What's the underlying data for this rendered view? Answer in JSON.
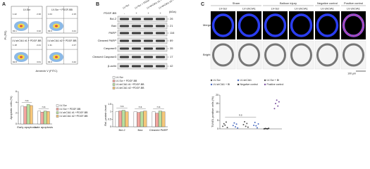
{
  "panel_a": {
    "letter": "A",
    "flow": {
      "y_label": "PI (PE)",
      "x_label": "Annexin V (FITC)",
      "plots": [
        {
          "label": "LV-Scr",
          "quadrants": [
            "1.22",
            "2.36",
            "93.1",
            "3.32"
          ]
        },
        {
          "label": "LV-Scr + PDGF-BB",
          "quadrants": [
            "1.04",
            "2.15",
            "93.6",
            "3.21"
          ]
        },
        {
          "label": "LV-shCIA1 #1 + PDGF-BB",
          "quadrants": [
            "1.18",
            "2.41",
            "92.8",
            "3.61"
          ]
        },
        {
          "label": "LV-shCIA1 #2 + PDGF-BB",
          "quadrants": [
            "1.31",
            "2.27",
            "93.0",
            "3.42"
          ]
        }
      ]
    },
    "chart": {
      "type": "bar",
      "y_label": "Apoptotic cells (%)",
      "categories": [
        "Early apoptosis",
        "Late apoptosis"
      ],
      "series": [
        {
          "name": "LV-Scr",
          "color": "#ffffff",
          "values": [
            3.3,
            2.4
          ]
        },
        {
          "name": "LV-Scr + PDGF-BB",
          "color": "#f4a7a0",
          "values": [
            3.2,
            2.2
          ]
        },
        {
          "name": "LV-shCIA1 #1 +PDGF-BB",
          "color": "#b9dfa0",
          "values": [
            3.6,
            2.4
          ]
        },
        {
          "name": "LV-shCIA1 #2 +PDGF-BB",
          "color": "#f6c77a",
          "values": [
            3.4,
            2.3
          ]
        }
      ],
      "ylim": [
        0,
        6
      ],
      "yticks": [
        0,
        2,
        4,
        6
      ],
      "annotations": [
        "n.s",
        "n.s"
      ]
    }
  },
  "panel_b": {
    "letter": "B",
    "lanes": [
      "LV-Scr",
      "LV-Scr + PDGF-BB",
      "LV-shCIA1 #1 + PDGF-BB",
      "LV-shCIA1 #2 + PDGF-BB"
    ],
    "treatment": {
      "label": "PDGF-BB",
      "signs": [
        "-",
        "+",
        "+",
        "+"
      ],
      "unit": "(kDa)"
    },
    "blots": [
      {
        "label": "Bcl-2",
        "kda": "26"
      },
      {
        "label": "Bax",
        "kda": "21"
      },
      {
        "label": "PARP",
        "kda": "116"
      },
      {
        "label": "Cleaved PARP",
        "kda": "89"
      },
      {
        "label": "Caspase3",
        "kda": "35"
      },
      {
        "label": "Cleaved Caspase3",
        "kda": "17"
      },
      {
        "label": "β-actin",
        "kda": "42"
      }
    ],
    "chart": {
      "type": "bar",
      "y_label": "Rel. protein level",
      "categories": [
        "Bcl-2",
        "Bax",
        "Cleaved PARP"
      ],
      "series": [
        {
          "name": "LV-Scr",
          "color": "#ffffff",
          "values": [
            1,
            1,
            1
          ]
        },
        {
          "name": "LV-Scr + PDGF-BB",
          "color": "#f4a7a0",
          "values": [
            1.05,
            0.95,
            0.9
          ]
        },
        {
          "name": "LV-shCIA1 #1 +PDGF-BB",
          "color": "#b9dfa0",
          "values": [
            1.1,
            1.0,
            1.05
          ]
        },
        {
          "name": "LV-shCIA1 #2 +PDGF-BB",
          "color": "#f6c77a",
          "values": [
            1.0,
            1.05,
            1.0
          ]
        }
      ],
      "ylim": [
        0,
        1.5
      ],
      "yticks": [
        0,
        0.5,
        1,
        1.5
      ],
      "annotations": [
        "n.s",
        "n.s",
        "n.s"
      ]
    }
  },
  "panel_c": {
    "letter": "C",
    "groups": [
      {
        "label": "Sham",
        "columns": [
          "LV-Scr",
          "LV-shCIA1"
        ]
      },
      {
        "label": "Balloon injury",
        "columns": [
          "LV-Scr",
          "LV-shCIA1"
        ]
      },
      {
        "label": "Negative control",
        "columns": [
          "LV-shCIA1"
        ]
      },
      {
        "label": "Positive control",
        "columns": [
          "LV-shCIA1"
        ]
      }
    ],
    "rows": [
      "Merge",
      "Bright"
    ],
    "scale_bar": "100 μm",
    "chart": {
      "type": "scatter",
      "y_label": "TUNEL positive cells (%)",
      "series": [
        {
          "name": "LV-Scr",
          "color": "#555555",
          "values": [
            1.5,
            3,
            2.2,
            4,
            0.8
          ]
        },
        {
          "name": "LV-shCIA1",
          "color": "#4b6cc1",
          "values": [
            2,
            3.5,
            1.2,
            2.8,
            0.5
          ]
        },
        {
          "name": "LV-Scr + BI",
          "color": "#555555",
          "values": [
            2.5,
            4.2,
            1.5,
            3.2,
            1
          ]
        },
        {
          "name": "LV-shCIA1 + BI",
          "color": "#4b6cc1",
          "values": [
            2.1,
            3.8,
            1.8,
            0.6,
            2.9
          ]
        },
        {
          "name": "Negative control",
          "color": "#333333",
          "values": [
            0,
            0.2,
            0.1,
            0,
            0.3
          ]
        },
        {
          "name": "Positive control",
          "color": "#7a4fa0",
          "values": [
            12,
            15,
            17,
            13.5,
            16
          ]
        }
      ],
      "ylim": [
        0,
        20
      ],
      "yticks": [
        0,
        5,
        10,
        15,
        20
      ],
      "annotations": [
        "n.s"
      ]
    }
  }
}
